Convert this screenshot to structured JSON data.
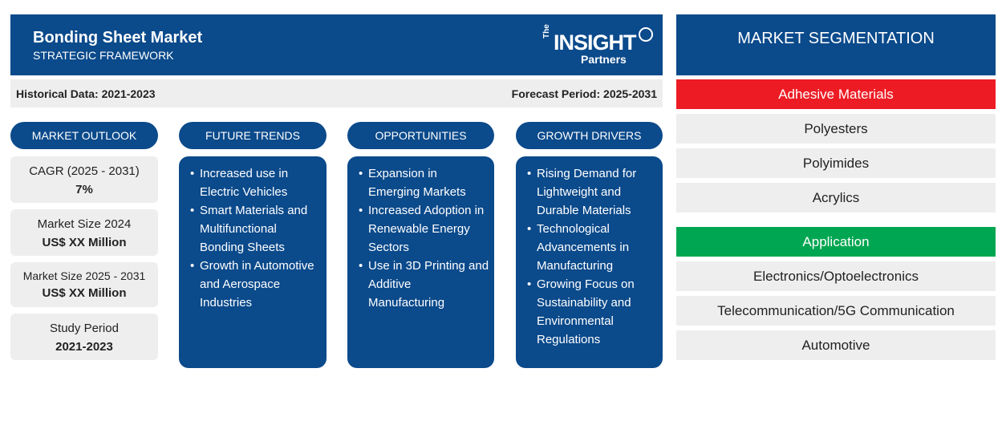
{
  "header": {
    "title": "Bonding Sheet Market",
    "subtitle": "STRATEGIC FRAMEWORK",
    "logo": {
      "the": "The",
      "insight": "INSIGHT",
      "partners": "Partners"
    }
  },
  "periods": {
    "historical": "Historical Data: 2021-2023",
    "forecast": "Forecast Period: 2025-2031"
  },
  "columns": {
    "outlook": "MARKET OUTLOOK",
    "trends": "FUTURE TRENDS",
    "opportunities": "OPPORTUNITIES",
    "drivers": "GROWTH DRIVERS"
  },
  "outlook": [
    {
      "label": "CAGR (2025 - 2031)",
      "value": "7%"
    },
    {
      "label": "Market Size 2024",
      "value": "US$ XX Million"
    },
    {
      "label": "Market Size 2025 - 2031",
      "value": "US$ XX Million"
    },
    {
      "label": "Study Period",
      "value": "2021-2023"
    }
  ],
  "trends": [
    "Increased use in Electric Vehicles",
    "Smart Materials and Multifunctional Bonding Sheets",
    "Growth in Automotive and Aerospace Industries"
  ],
  "opportunities": [
    "Expansion in Emerging Markets",
    "Increased Adoption in Renewable Energy Sectors",
    "Use in 3D Printing and Additive Manufacturing"
  ],
  "drivers": [
    "Rising Demand for Lightweight and Durable Materials",
    "Technological Advancements in Manufacturing",
    "Growing Focus on Sustainability and Environmental Regulations"
  ],
  "segmentation": {
    "title": "MARKET SEGMENTATION",
    "groups": [
      {
        "name": "Adhesive Materials",
        "color": "#ed1c24",
        "items": [
          "Polyesters",
          "Polyimides",
          "Acrylics"
        ]
      },
      {
        "name": "Application",
        "color": "#00a651",
        "items": [
          "Electronics/Optoelectronics",
          "Telecommunication/5G Communication",
          "Automotive"
        ]
      }
    ]
  },
  "colors": {
    "primary": "#0b4a8b",
    "panel": "#eeeeee"
  }
}
